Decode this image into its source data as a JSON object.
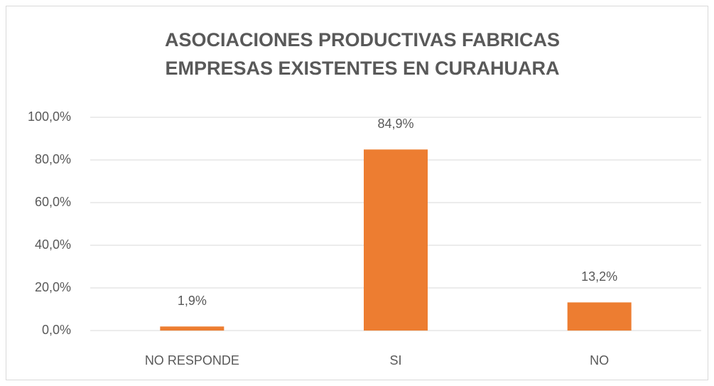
{
  "chart_data": {
    "type": "bar",
    "title": "ASOCIACIONES PRODUCTIVAS FABRICAS EMPRESAS EXISTENTES EN CURAHUARA",
    "categories": [
      "NO RESPONDE",
      "SI",
      "NO"
    ],
    "values": [
      1.9,
      84.9,
      13.2
    ],
    "value_labels": [
      "1,9%",
      "84,9%",
      "13,2%"
    ],
    "color": "#ed7d31",
    "ylim": [
      0,
      100
    ],
    "yticks": [
      {
        "value": 0,
        "label": "0,0%"
      },
      {
        "value": 20,
        "label": "20,0%"
      },
      {
        "value": 40,
        "label": "40,0%"
      },
      {
        "value": 60,
        "label": "60,0%"
      },
      {
        "value": 80,
        "label": "80,0%"
      },
      {
        "value": 100,
        "label": "100,0%"
      }
    ],
    "grid": true
  }
}
